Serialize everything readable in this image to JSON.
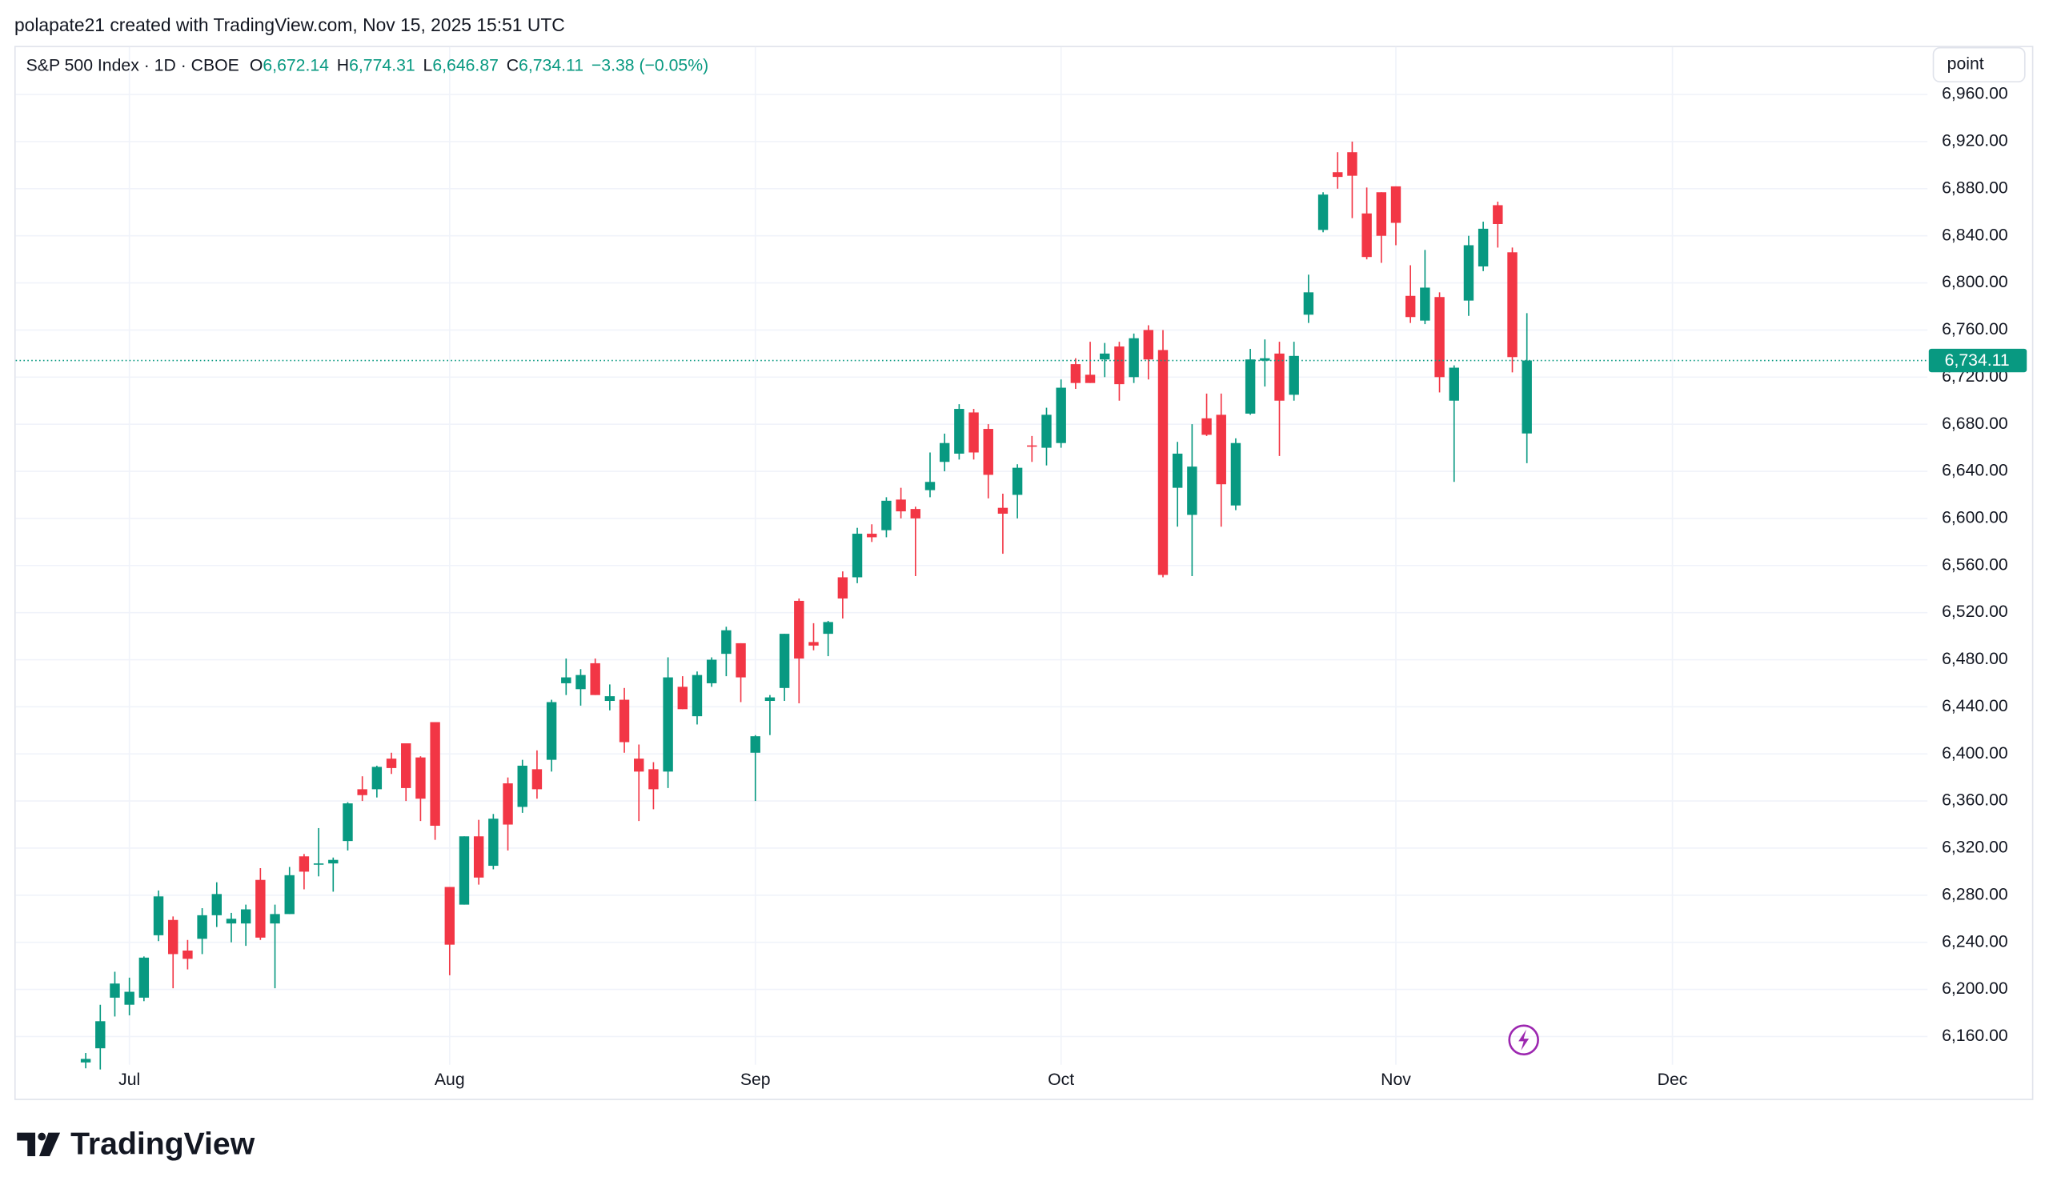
{
  "attribution": "polapate21 created with TradingView.com, Nov 15, 2025 15:51 UTC",
  "brand": "TradingView",
  "scale_button": "point",
  "chart_data": {
    "type": "candlestick",
    "title": "S&P 500 Index · 1D · CBOE",
    "ohlc_header": [
      {
        "label": "O",
        "value": "6,672.14"
      },
      {
        "label": "H",
        "value": "6,774.31"
      },
      {
        "label": "L",
        "value": "6,646.87"
      },
      {
        "label": "C",
        "value": "6,734.11"
      }
    ],
    "change": "−3.38 (−0.05%)",
    "up_color": "#089981",
    "down_color": "#f23645",
    "price_line": {
      "value": 6734.11,
      "label": "6,734.11"
    },
    "categories": [
      null,
      null,
      null,
      "Jul",
      null,
      null,
      null,
      null,
      null,
      null,
      null,
      null,
      null,
      null,
      null,
      null,
      null,
      null,
      null,
      null,
      null,
      null,
      null,
      null,
      null,
      "Aug",
      null,
      null,
      null,
      null,
      null,
      null,
      null,
      null,
      null,
      null,
      null,
      null,
      null,
      null,
      null,
      null,
      null,
      null,
      null,
      null,
      "Sep",
      null,
      null,
      null,
      null,
      null,
      null,
      null,
      null,
      null,
      null,
      null,
      null,
      null,
      null,
      null,
      null,
      null,
      null,
      null,
      null,
      "Oct",
      null,
      null,
      null,
      null,
      null,
      null,
      null,
      null,
      null,
      null,
      null,
      null,
      null,
      null,
      null,
      null,
      null,
      null,
      null,
      null,
      null,
      null,
      "Nov",
      null,
      null,
      null,
      null,
      null,
      null,
      null,
      null,
      null,
      null,
      null,
      null,
      null,
      null,
      null,
      null,
      null,
      null,
      "Dec"
    ],
    "open": [
      6138,
      6150,
      6193,
      6187,
      6193,
      6246,
      6259,
      6233,
      6243,
      6263,
      6256,
      6256,
      6293,
      6256,
      6264,
      6313,
      6306,
      6307,
      6326,
      6370,
      6370,
      6396,
      6409,
      6397,
      6427,
      6287,
      6272,
      6330,
      6305,
      6375,
      6355,
      6387,
      6395,
      6460,
      6455,
      6477,
      6445,
      6446,
      6396,
      6387,
      6385,
      6457,
      6432,
      6460,
      6485,
      6494,
      6401,
      6445,
      6456,
      6530,
      6495,
      6502,
      6550,
      6550,
      6587,
      6590,
      6616,
      6608,
      6624,
      6648,
      6655,
      6690,
      6676,
      6609,
      6620,
      6662,
      6660,
      6664,
      6731,
      6722,
      6735,
      6746,
      6720,
      6760,
      6743,
      6626,
      6603,
      6685,
      6688,
      6611,
      6689,
      6734,
      6740,
      6705,
      6773,
      6845,
      6894,
      6911,
      6859,
      6877,
      6882,
      6789,
      6768,
      6788,
      6700,
      6785,
      6814,
      6866,
      6826,
      6672.14,
      null,
      null,
      null,
      null,
      null,
      null,
      null,
      null,
      null,
      null
    ],
    "high": [
      6146,
      6187,
      6215,
      6210,
      6228,
      6284,
      6262,
      6242,
      6269,
      6291,
      6265,
      6272,
      6303,
      6272,
      6304,
      6315,
      6337,
      6312,
      6359,
      6381,
      6390,
      6401,
      6409,
      6398,
      6427,
      6287,
      6330,
      6344,
      6349,
      6380,
      6395,
      6403,
      6446,
      6481,
      6472,
      6481,
      6459,
      6456,
      6408,
      6393,
      6482,
      6466,
      6470,
      6482,
      6508,
      6494,
      6416,
      6450,
      6502,
      6532,
      6511,
      6513,
      6555,
      6592,
      6595,
      6618,
      6626,
      6610,
      6656,
      6672,
      6697,
      6693,
      6680,
      6621,
      6646,
      6670,
      6694,
      6718,
      6736,
      6750,
      6749,
      6750,
      6757,
      6764,
      6760,
      6665,
      6680,
      6706,
      6706,
      6668,
      6744,
      6752,
      6750,
      6750,
      6807,
      6877,
      6911,
      6920,
      6881,
      6877,
      6882,
      6815,
      6828,
      6792,
      6730,
      6840,
      6852,
      6869,
      6830,
      6774.31,
      null,
      null,
      null,
      null,
      null,
      null,
      null,
      null,
      null,
      null
    ],
    "low": [
      6133,
      6132,
      6177,
      6178,
      6190,
      6241,
      6201,
      6217,
      6230,
      6253,
      6240,
      6237,
      6242,
      6201,
      6264,
      6285,
      6296,
      6283,
      6318,
      6360,
      6363,
      6383,
      6360,
      6343,
      6327,
      6212,
      6272,
      6289,
      6302,
      6318,
      6350,
      6362,
      6385,
      6450,
      6441,
      6450,
      6437,
      6401,
      6343,
      6353,
      6371,
      6438,
      6425,
      6457,
      6466,
      6444,
      6360,
      6416,
      6445,
      6443,
      6488,
      6483,
      6515,
      6545,
      6580,
      6584,
      6600,
      6551,
      6618,
      6640,
      6650,
      6650,
      6617,
      6570,
      6600,
      6648,
      6645,
      6660,
      6710,
      6715,
      6720,
      6700,
      6715,
      6718,
      6550,
      6593,
      6551,
      6670,
      6593,
      6607,
      6688,
      6712,
      6653,
      6700,
      6766,
      6843,
      6880,
      6855,
      6820,
      6817,
      6832,
      6766,
      6765,
      6707,
      6631,
      6772,
      6810,
      6830,
      6724,
      6646.87,
      null,
      null,
      null,
      null,
      null,
      null,
      null,
      null,
      null,
      null
    ],
    "close": [
      6141,
      6173,
      6205,
      6198,
      6227,
      6279,
      6230,
      6226,
      6263,
      6281,
      6260,
      6268,
      6244,
      6264,
      6297,
      6300,
      6307,
      6310,
      6358,
      6365,
      6389,
      6388,
      6371,
      6362,
      6339,
      6238,
      6330,
      6295,
      6345,
      6340,
      6390,
      6370,
      6444,
      6465,
      6467,
      6450,
      6449,
      6410,
      6385,
      6370,
      6465,
      6438,
      6467,
      6480,
      6505,
      6465,
      6415,
      6448,
      6502,
      6481,
      6492,
      6512,
      6532,
      6587,
      6584,
      6615,
      6606,
      6600,
      6631,
      6664,
      6693,
      6656,
      6637,
      6604,
      6643,
      6661,
      6688,
      6711,
      6715,
      6715,
      6740,
      6714,
      6753,
      6735,
      6552,
      6655,
      6644,
      6671,
      6629,
      6664,
      6735,
      6736,
      6700,
      6738,
      6792,
      6875,
      6890,
      6891,
      6822,
      6840,
      6851,
      6771,
      6796,
      6720,
      6728,
      6832,
      6846,
      6850,
      6737,
      6734.11,
      null,
      null,
      null,
      null,
      null,
      null,
      null,
      null,
      null,
      null
    ],
    "ylim": [
      6136,
      6998
    ],
    "yticks": [
      {
        "value": 6160,
        "label": "6,160.00"
      },
      {
        "value": 6200,
        "label": "6,200.00"
      },
      {
        "value": 6240,
        "label": "6,240.00"
      },
      {
        "value": 6280,
        "label": "6,280.00"
      },
      {
        "value": 6320,
        "label": "6,320.00"
      },
      {
        "value": 6360,
        "label": "6,360.00"
      },
      {
        "value": 6400,
        "label": "6,400.00"
      },
      {
        "value": 6440,
        "label": "6,440.00"
      },
      {
        "value": 6480,
        "label": "6,480.00"
      },
      {
        "value": 6520,
        "label": "6,520.00"
      },
      {
        "value": 6560,
        "label": "6,560.00"
      },
      {
        "value": 6600,
        "label": "6,600.00"
      },
      {
        "value": 6640,
        "label": "6,640.00"
      },
      {
        "value": 6680,
        "label": "6,680.00"
      },
      {
        "value": 6720,
        "label": "6,720.00"
      },
      {
        "value": 6760,
        "label": "6,760.00"
      },
      {
        "value": 6800,
        "label": "6,800.00"
      },
      {
        "value": 6840,
        "label": "6,840.00"
      },
      {
        "value": 6880,
        "label": "6,880.00"
      },
      {
        "value": 6920,
        "label": "6,920.00"
      },
      {
        "value": 6960,
        "label": "6,960.00"
      }
    ],
    "grid": true
  }
}
